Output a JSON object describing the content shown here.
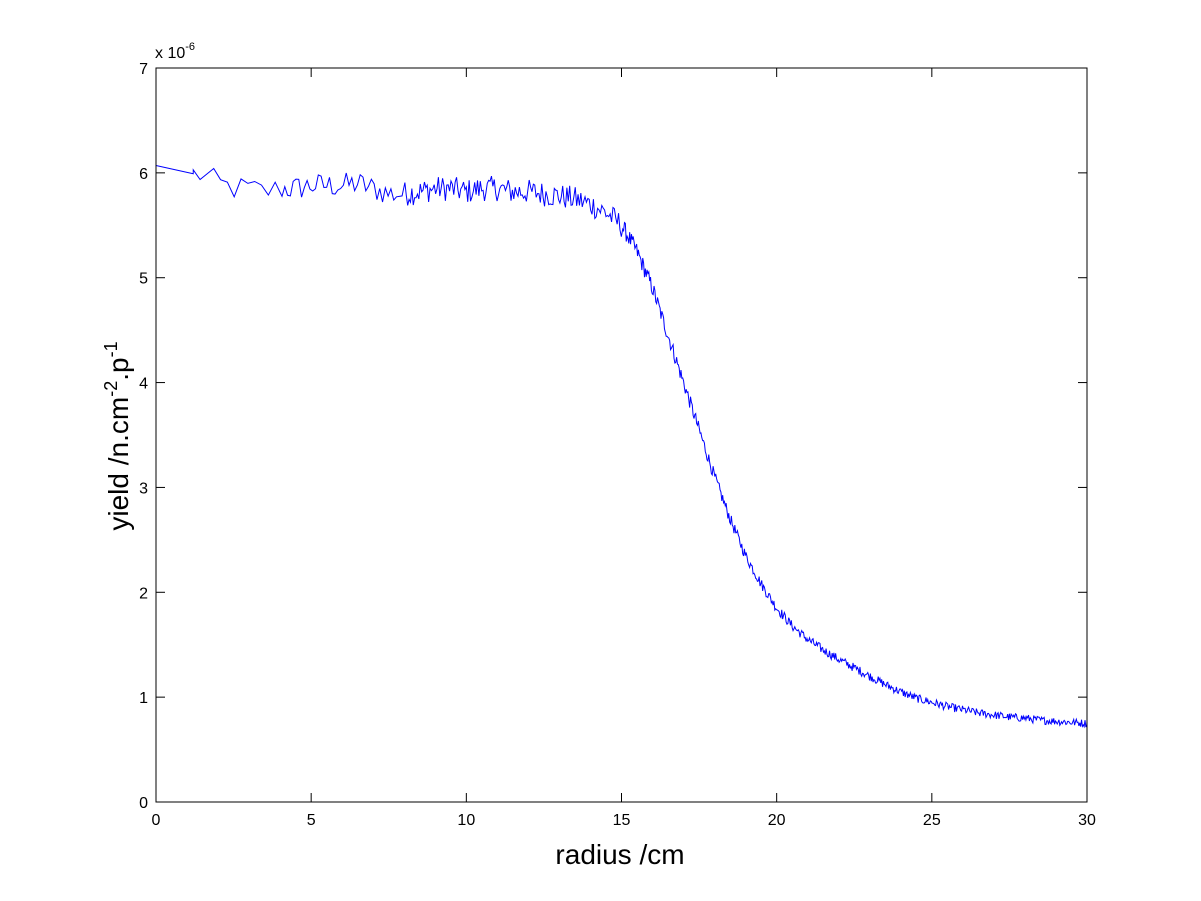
{
  "chart_data": {
    "type": "line",
    "xlabel": "radius /cm",
    "ylabel_base": "yield /n.cm",
    "ylabel_sup1": "-2",
    "ylabel_mid": ".p",
    "ylabel_sup2": "-1",
    "exponent_base": "x 10",
    "exponent_sup": "-6",
    "xlim": [
      0,
      30
    ],
    "ylim": [
      0,
      7
    ],
    "xticks": [
      0,
      5,
      10,
      15,
      20,
      25,
      30
    ],
    "yticks": [
      0,
      1,
      2,
      3,
      4,
      5,
      6,
      7
    ],
    "xtick_labels": [
      "0",
      "5",
      "10",
      "15",
      "20",
      "25",
      "30"
    ],
    "ytick_labels": [
      "0",
      "1",
      "2",
      "3",
      "4",
      "5",
      "6",
      "7"
    ],
    "grid": false,
    "line_color": "#0000ff",
    "series": [
      {
        "x": [
          0,
          0.5,
          1.0,
          1.5,
          2.0,
          2.5,
          3.0,
          3.5,
          4.0,
          4.5,
          5.0,
          5.5,
          6.0,
          6.5,
          7.0,
          7.5,
          8.0,
          8.5,
          9.0,
          9.5,
          10.0,
          10.5,
          11.0,
          11.5,
          12.0,
          12.5,
          13.0,
          13.5,
          14.0,
          14.5,
          15.0,
          15.5,
          16.0,
          16.5,
          17.0,
          17.5,
          18.0,
          18.5,
          19.0,
          19.5,
          20.0,
          20.5,
          21.0,
          21.5,
          22.0,
          22.5,
          23.0,
          23.5,
          24.0,
          24.5,
          25.0,
          25.5,
          26.0,
          26.5,
          27.0,
          27.5,
          28.0,
          28.5,
          29.0,
          29.5,
          30.0
        ],
        "values": [
          6.07,
          6.04,
          6.0,
          5.98,
          5.9,
          5.85,
          5.85,
          5.82,
          5.85,
          5.85,
          5.88,
          5.88,
          5.88,
          5.9,
          5.85,
          5.8,
          5.8,
          5.82,
          5.85,
          5.85,
          5.82,
          5.85,
          5.85,
          5.82,
          5.82,
          5.8,
          5.78,
          5.75,
          5.7,
          5.62,
          5.5,
          5.25,
          4.9,
          4.45,
          4.0,
          3.55,
          3.1,
          2.7,
          2.35,
          2.08,
          1.85,
          1.68,
          1.55,
          1.45,
          1.36,
          1.28,
          1.2,
          1.12,
          1.05,
          0.99,
          0.95,
          0.91,
          0.88,
          0.85,
          0.83,
          0.81,
          0.8,
          0.78,
          0.77,
          0.76,
          0.75
        ]
      }
    ]
  }
}
